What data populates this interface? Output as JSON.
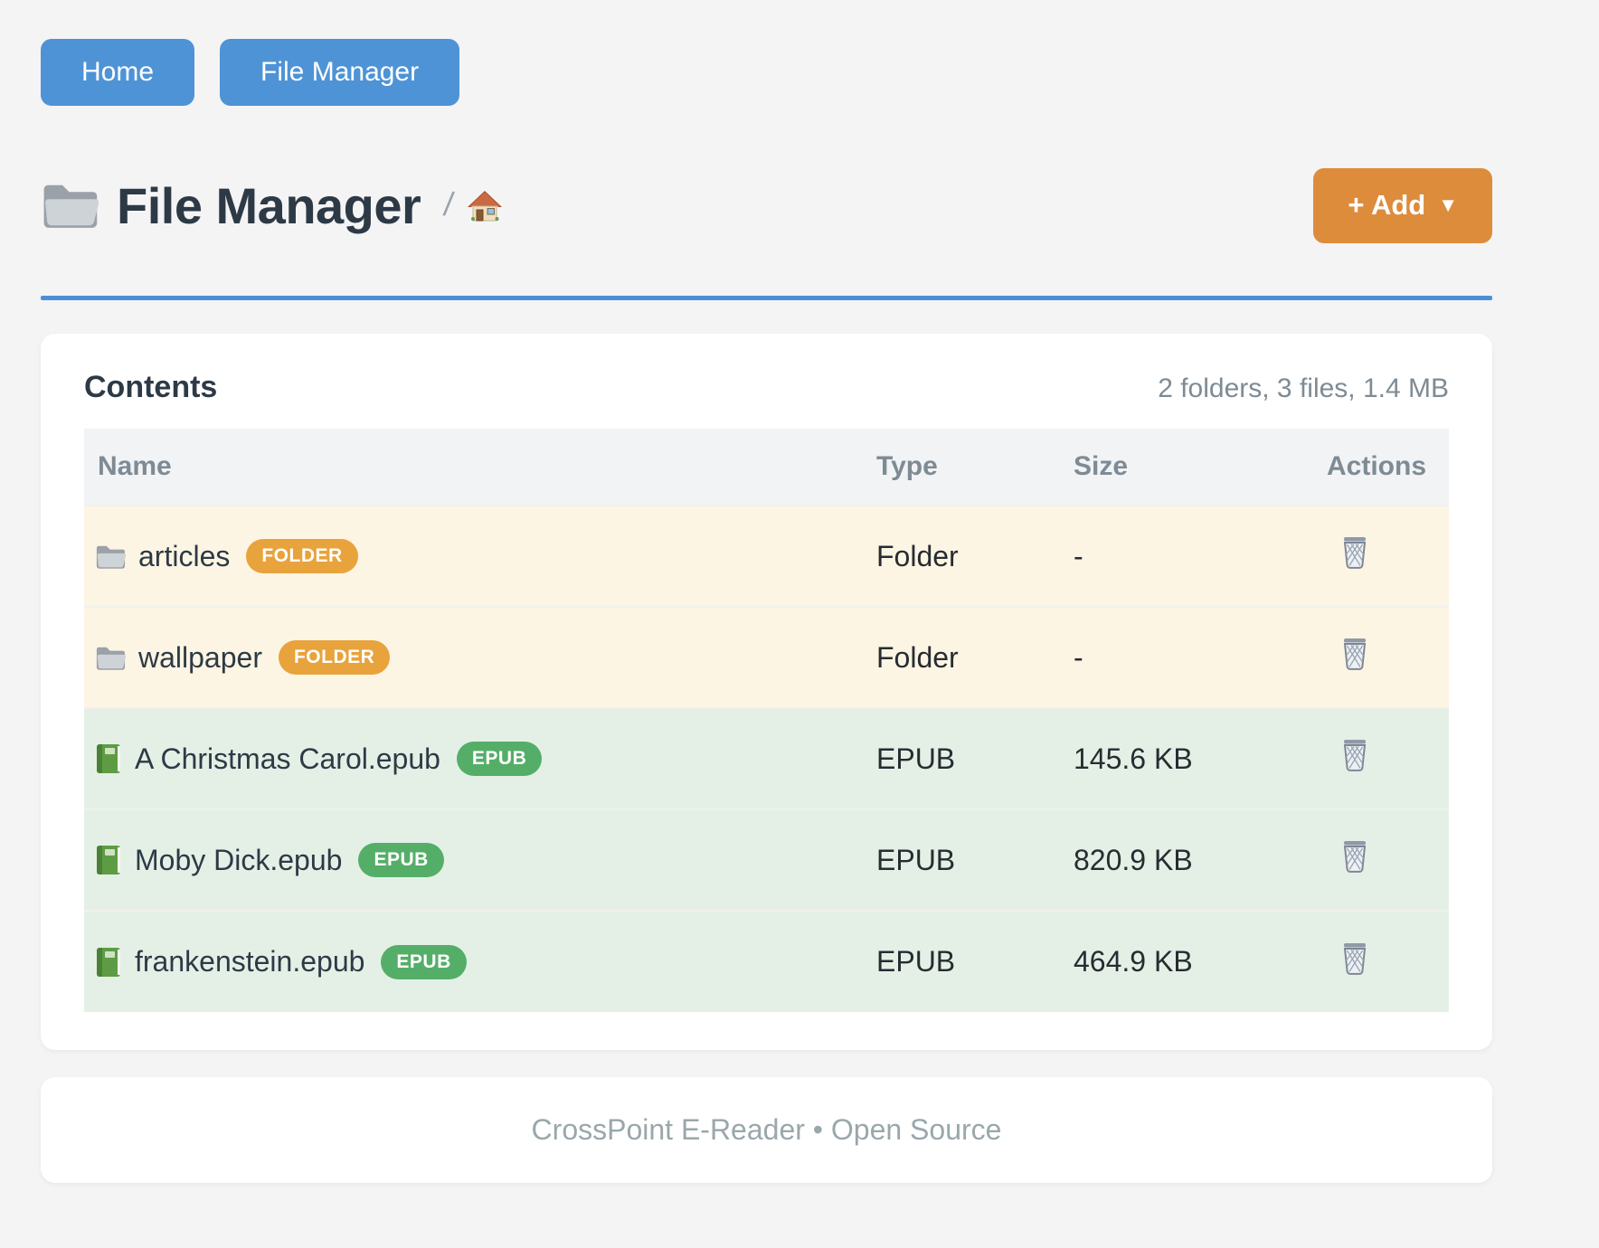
{
  "nav": {
    "home_label": "Home",
    "file_manager_label": "File Manager"
  },
  "header": {
    "title": "File Manager",
    "title_icon": "folder-icon",
    "breadcrumb_separator": "/",
    "breadcrumb_home_icon": "house-icon",
    "add_button_label": "+ Add",
    "add_button_caret": "▼"
  },
  "card": {
    "title": "Contents",
    "summary": "2 folders, 3 files, 1.4 MB",
    "columns": [
      "Name",
      "Type",
      "Size",
      "Actions"
    ],
    "rows": [
      {
        "name": "articles",
        "badge": "FOLDER",
        "type": "Folder",
        "size": "-",
        "kind": "folder",
        "icon": "folder-icon",
        "action_icon": "trash-icon"
      },
      {
        "name": "wallpaper",
        "badge": "FOLDER",
        "type": "Folder",
        "size": "-",
        "kind": "folder",
        "icon": "folder-icon",
        "action_icon": "trash-icon"
      },
      {
        "name": "A Christmas Carol.epub",
        "badge": "EPUB",
        "type": "EPUB",
        "size": "145.6 KB",
        "kind": "epub",
        "icon": "book-icon",
        "action_icon": "trash-icon"
      },
      {
        "name": "Moby Dick.epub",
        "badge": "EPUB",
        "type": "EPUB",
        "size": "820.9 KB",
        "kind": "epub",
        "icon": "book-icon",
        "action_icon": "trash-icon"
      },
      {
        "name": "frankenstein.epub",
        "badge": "EPUB",
        "type": "EPUB",
        "size": "464.9 KB",
        "kind": "epub",
        "icon": "book-icon",
        "action_icon": "trash-icon"
      }
    ]
  },
  "footer": {
    "text": "CrossPoint E-Reader • Open Source"
  },
  "colors": {
    "page_background": "#f4f4f5",
    "accent_blue": "#4e93d6",
    "divider_blue": "#4a90d8",
    "accent_orange": "#dd8c3c",
    "badge_folder_orange": "#e8a33c",
    "badge_epub_green": "#55ae68",
    "row_folder_background": "#fdf5e3",
    "row_epub_background": "#e4f0e6",
    "table_header_background": "#f1f3f5",
    "heading_text": "#2d3a46",
    "muted_text": "#7e8b94",
    "footer_text": "#9aa7ab"
  }
}
